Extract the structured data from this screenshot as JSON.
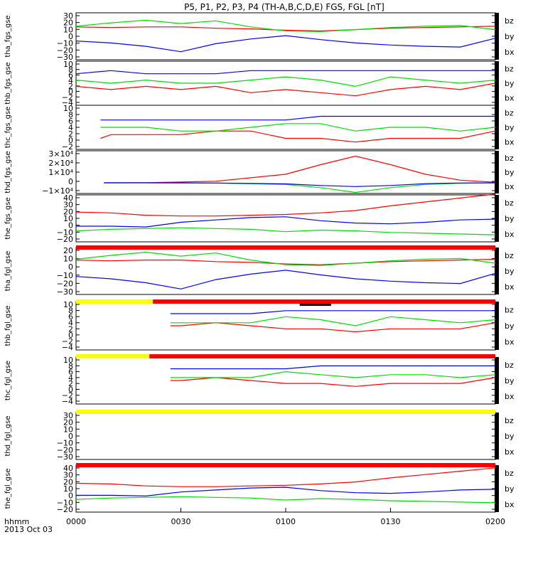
{
  "title": "P5, P1, P2, P3, P4 (TH-A,B,C,D,E) FGS, FGL [nT]",
  "colors": {
    "bx": "#0000ff",
    "by": "#00dd00",
    "bz": "#ff0000",
    "bar_red": "#ff0000",
    "bar_yellow": "#ffff00",
    "bar_black": "#000000"
  },
  "time_axis": {
    "label_line1": "hhmm",
    "label_line2": "2013 Oct 03",
    "ticks": [
      "0000",
      "0030",
      "0100",
      "0130",
      "0200"
    ]
  },
  "chart_data": [
    {
      "type": "line",
      "ylabel": "tha_fgs_gse",
      "ylim": [
        -40,
        30
      ],
      "tick_labels": [
        "30",
        "20",
        "10",
        "0",
        "−10",
        "−20",
        "−30"
      ],
      "series": [
        {
          "name": "bz",
          "x_minutes": [
            0,
            10,
            20,
            30,
            40,
            50,
            60,
            70,
            80,
            90,
            100,
            110,
            120
          ],
          "values": [
            9,
            8,
            9,
            9,
            7,
            6,
            4,
            3,
            5,
            7,
            8,
            9,
            10
          ]
        },
        {
          "name": "by",
          "x_minutes": [
            0,
            10,
            20,
            30,
            40,
            50,
            60,
            70,
            80,
            90,
            100,
            110,
            120
          ],
          "values": [
            10,
            15,
            19,
            14,
            18,
            9,
            3,
            2,
            5,
            8,
            10,
            11,
            5
          ]
        },
        {
          "name": "bx",
          "x_minutes": [
            0,
            10,
            20,
            30,
            40,
            50,
            60,
            70,
            80,
            90,
            100,
            110,
            120
          ],
          "values": [
            -12,
            -15,
            -20,
            -28,
            -16,
            -9,
            -4,
            -10,
            -15,
            -18,
            -20,
            -21,
            -8
          ]
        }
      ]
    },
    {
      "type": "line",
      "ylabel": "thb_fgs_gse",
      "ylim": [
        -4,
        10
      ],
      "tick_labels": [
        "10",
        "8",
        "6",
        "4",
        "2",
        "0",
        "−2",
        "−4"
      ],
      "series": [
        {
          "name": "bz",
          "x_minutes": [
            0,
            10,
            20,
            30,
            40,
            50,
            60,
            70,
            80,
            90,
            100,
            110,
            120
          ],
          "values": [
            2,
            1,
            2,
            1,
            2,
            0,
            1,
            0,
            -1,
            1,
            2,
            1,
            3
          ]
        },
        {
          "name": "by",
          "x_minutes": [
            0,
            10,
            20,
            30,
            40,
            50,
            60,
            70,
            80,
            90,
            100,
            110,
            120
          ],
          "values": [
            4,
            3,
            4,
            3,
            3,
            4,
            5,
            4,
            2,
            5,
            4,
            3,
            4
          ]
        },
        {
          "name": "bx",
          "x_minutes": [
            0,
            10,
            20,
            30,
            40,
            50,
            60,
            70,
            80,
            90,
            100,
            110,
            120
          ],
          "values": [
            6,
            7,
            6,
            6,
            6,
            7,
            7,
            7,
            7,
            7,
            7,
            7,
            7
          ]
        }
      ]
    },
    {
      "type": "line",
      "ylabel": "thc_fgs_gse",
      "ylim": [
        -2,
        10
      ],
      "tick_labels": [
        "10",
        "8",
        "6",
        "4",
        "2",
        "0",
        "−2"
      ],
      "series": [
        {
          "name": "bz",
          "x_minutes": [
            7,
            10,
            20,
            30,
            40,
            50,
            60,
            70,
            80,
            90,
            100,
            110,
            120
          ],
          "values": [
            1,
            2,
            2,
            2,
            3,
            3,
            1,
            1,
            0,
            1,
            1,
            1,
            3
          ]
        },
        {
          "name": "by",
          "x_minutes": [
            7,
            10,
            20,
            30,
            40,
            50,
            60,
            70,
            80,
            90,
            100,
            110,
            120
          ],
          "values": [
            4,
            4,
            4,
            3,
            3,
            4,
            5,
            5,
            3,
            4,
            4,
            3,
            4
          ]
        },
        {
          "name": "bx",
          "x_minutes": [
            7,
            10,
            20,
            30,
            40,
            50,
            60,
            70,
            80,
            90,
            100,
            110,
            120
          ],
          "values": [
            6,
            6,
            6,
            6,
            6,
            6,
            6,
            7,
            7,
            7,
            7,
            7,
            7
          ]
        }
      ]
    },
    {
      "type": "line",
      "ylabel": "thd_fgs_gse",
      "ylim": [
        -10000,
        30000
      ],
      "tick_labels": [
        "3×10⁴",
        "2×10⁴",
        "1×10⁴",
        "0",
        "−1×10⁴"
      ],
      "series": [
        {
          "name": "bz",
          "x_minutes": [
            8,
            20,
            40,
            60,
            70,
            80,
            90,
            100,
            110,
            120
          ],
          "values": [
            0,
            50,
            1500,
            8000,
            17000,
            25000,
            17000,
            8000,
            2500,
            500
          ]
        },
        {
          "name": "by",
          "x_minutes": [
            8,
            20,
            40,
            60,
            70,
            80,
            90,
            100,
            110,
            120
          ],
          "values": [
            0,
            -10,
            -300,
            -1500,
            -4500,
            -9000,
            -4500,
            -1500,
            -400,
            -50
          ]
        },
        {
          "name": "bx",
          "x_minutes": [
            8,
            20,
            40,
            60,
            70,
            80,
            90,
            100,
            110,
            120
          ],
          "values": [
            0,
            -10,
            -200,
            -1000,
            -2500,
            -3500,
            -2500,
            -800,
            -200,
            -30
          ]
        }
      ]
    },
    {
      "type": "line",
      "ylabel": "the_fgs_gse",
      "ylim": [
        -20,
        40
      ],
      "tick_labels": [
        "40",
        "30",
        "20",
        "10",
        "0",
        "−10",
        "−20"
      ],
      "series": [
        {
          "name": "bz",
          "x_minutes": [
            0,
            10,
            20,
            30,
            40,
            50,
            60,
            70,
            80,
            90,
            100,
            110,
            120
          ],
          "values": [
            18,
            17,
            14,
            13,
            13,
            14,
            15,
            17,
            20,
            26,
            31,
            36,
            41
          ]
        },
        {
          "name": "by",
          "x_minutes": [
            0,
            10,
            20,
            30,
            40,
            50,
            60,
            70,
            80,
            90,
            100,
            110,
            120
          ],
          "values": [
            -6,
            -4,
            -3,
            -2,
            -3,
            -4,
            -7,
            -5,
            -6,
            -8,
            -9,
            -10,
            -11
          ]
        },
        {
          "name": "bx",
          "x_minutes": [
            0,
            10,
            20,
            30,
            40,
            50,
            60,
            70,
            80,
            90,
            100,
            110,
            120
          ],
          "values": [
            0,
            0,
            -1,
            5,
            8,
            11,
            12,
            7,
            4,
            3,
            5,
            8,
            9
          ]
        }
      ]
    },
    {
      "type": "line",
      "ylabel": "tha_fgl_gse",
      "ylim": [
        -35,
        25
      ],
      "tick_labels": [
        "20",
        "10",
        "0",
        "−10",
        "−20",
        "−30"
      ],
      "series": [
        {
          "name": "bz",
          "x_minutes": [
            0,
            10,
            20,
            30,
            40,
            50,
            60,
            70,
            80,
            90,
            100,
            110,
            120
          ],
          "values": [
            9,
            8,
            9,
            9,
            7,
            6,
            4,
            3,
            5,
            7,
            8,
            9,
            10
          ]
        },
        {
          "name": "by",
          "x_minutes": [
            0,
            10,
            20,
            30,
            40,
            50,
            60,
            70,
            80,
            90,
            100,
            110,
            120
          ],
          "values": [
            10,
            15,
            19,
            14,
            18,
            9,
            3,
            2,
            5,
            8,
            10,
            11,
            5
          ]
        },
        {
          "name": "bx",
          "x_minutes": [
            0,
            10,
            20,
            30,
            40,
            50,
            60,
            70,
            80,
            90,
            100,
            110,
            120
          ],
          "values": [
            -12,
            -15,
            -20,
            -28,
            -16,
            -9,
            -4,
            -10,
            -15,
            -18,
            -20,
            -21,
            -8
          ]
        }
      ]
    },
    {
      "type": "line",
      "ylabel": "thb_fgl_gse",
      "ylim": [
        -6,
        10
      ],
      "tick_labels": [
        "10",
        "8",
        "6",
        "4",
        "2",
        "0",
        "−2",
        "−4"
      ],
      "series": [
        {
          "name": "bz",
          "x_minutes": [
            27,
            30,
            40,
            50,
            60,
            70,
            80,
            90,
            100,
            110,
            120
          ],
          "values": [
            2,
            2,
            3,
            2,
            1,
            1,
            0,
            1,
            1,
            1,
            3
          ]
        },
        {
          "name": "by",
          "x_minutes": [
            27,
            30,
            40,
            50,
            60,
            70,
            80,
            90,
            100,
            110,
            120
          ],
          "values": [
            3,
            3,
            3,
            3,
            5,
            4,
            2,
            5,
            4,
            3,
            4
          ]
        },
        {
          "name": "bx",
          "x_minutes": [
            27,
            30,
            40,
            50,
            60,
            70,
            80,
            90,
            100,
            110,
            120
          ],
          "values": [
            6,
            6,
            6,
            6,
            7,
            7,
            7,
            7,
            7,
            7,
            7
          ]
        }
      ]
    },
    {
      "type": "line",
      "ylabel": "thc_fgl_gse",
      "ylim": [
        -6,
        10
      ],
      "tick_labels": [
        "10",
        "8",
        "6",
        "4",
        "2",
        "0",
        "−2",
        "−4"
      ],
      "series": [
        {
          "name": "bz",
          "x_minutes": [
            27,
            30,
            40,
            50,
            60,
            70,
            80,
            90,
            100,
            110,
            120
          ],
          "values": [
            2,
            2,
            3,
            2,
            1,
            1,
            0,
            1,
            1,
            1,
            3
          ]
        },
        {
          "name": "by",
          "x_minutes": [
            27,
            30,
            40,
            50,
            60,
            70,
            80,
            90,
            100,
            110,
            120
          ],
          "values": [
            3,
            3,
            3,
            3,
            5,
            4,
            3,
            4,
            4,
            3,
            4
          ]
        },
        {
          "name": "bx",
          "x_minutes": [
            27,
            30,
            40,
            50,
            60,
            70,
            80,
            90,
            100,
            110,
            120
          ],
          "values": [
            6,
            6,
            6,
            6,
            6,
            7,
            7,
            7,
            7,
            7,
            7
          ]
        }
      ]
    },
    {
      "type": "line",
      "ylabel": "thd_fgl_gse",
      "ylim": [
        -40,
        35
      ],
      "tick_labels": [
        "30",
        "20",
        "10",
        "0",
        "−10",
        "−20",
        "−30"
      ],
      "series": [
        {
          "name": "bz",
          "x_minutes": [],
          "values": []
        },
        {
          "name": "by",
          "x_minutes": [],
          "values": []
        },
        {
          "name": "bx",
          "x_minutes": [],
          "values": []
        }
      ]
    },
    {
      "type": "line",
      "ylabel": "the_fgl_gse",
      "ylim": [
        -25,
        45
      ],
      "tick_labels": [
        "40",
        "30",
        "20",
        "10",
        "0",
        "−10",
        "−20"
      ],
      "series": [
        {
          "name": "bz",
          "x_minutes": [
            0,
            10,
            20,
            30,
            40,
            50,
            60,
            70,
            80,
            90,
            100,
            110,
            120
          ],
          "values": [
            18,
            17,
            14,
            13,
            13,
            14,
            15,
            17,
            20,
            26,
            31,
            36,
            41
          ]
        },
        {
          "name": "by",
          "x_minutes": [
            0,
            10,
            20,
            30,
            40,
            50,
            60,
            70,
            80,
            90,
            100,
            110,
            120
          ],
          "values": [
            -6,
            -4,
            -3,
            -2,
            -3,
            -4,
            -7,
            -5,
            -6,
            -8,
            -9,
            -10,
            -11
          ]
        },
        {
          "name": "bx",
          "x_minutes": [
            0,
            10,
            20,
            30,
            40,
            50,
            60,
            70,
            80,
            90,
            100,
            110,
            120
          ],
          "values": [
            0,
            0,
            -1,
            5,
            8,
            11,
            12,
            7,
            4,
            3,
            5,
            8,
            9
          ]
        }
      ]
    }
  ],
  "mode_bars": [
    {
      "after_panel": 4,
      "segments": [
        {
          "from_min": 0,
          "to_min": 120,
          "color": "red"
        }
      ]
    },
    {
      "after_panel": 5,
      "segments": [
        {
          "from_min": 0,
          "to_min": 22,
          "color": "yellow"
        },
        {
          "from_min": 22,
          "to_min": 120,
          "color": "red"
        },
        {
          "from_min": 64,
          "to_min": 73,
          "color": "black"
        }
      ]
    },
    {
      "after_panel": 6,
      "segments": [
        {
          "from_min": 0,
          "to_min": 21,
          "color": "yellow"
        },
        {
          "from_min": 21,
          "to_min": 120,
          "color": "red"
        }
      ]
    },
    {
      "after_panel": 7,
      "segments": [
        {
          "from_min": 0,
          "to_min": 120,
          "color": "yellow"
        }
      ]
    },
    {
      "after_panel": 8,
      "segments": [
        {
          "from_min": 0,
          "to_min": 120,
          "color": "red"
        }
      ]
    }
  ]
}
